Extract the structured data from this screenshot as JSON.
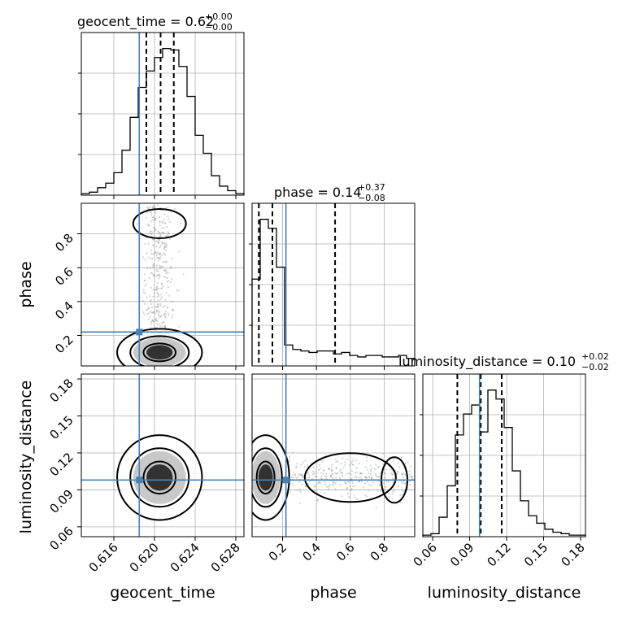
{
  "chart_data": {
    "type": "corner",
    "params": [
      {
        "name": "geocent_time",
        "axis_label": "geocent_time",
        "title": "geocent_time = 0.62",
        "title_sup": "+0.00",
        "title_sub": "−0.00",
        "range": [
          0.6128,
          0.6288
        ],
        "ticks": [
          0.616,
          0.62,
          0.624,
          0.628
        ],
        "tick_labels": [
          "0.616",
          "0.620",
          "0.624",
          "0.628"
        ],
        "truth": 0.6185,
        "quantiles": [
          0.6192,
          0.6206,
          0.6219
        ],
        "hist_counts": [
          0.01,
          0.02,
          0.05,
          0.08,
          0.15,
          0.3,
          0.52,
          0.72,
          0.83,
          0.92,
          0.98,
          0.97,
          0.86,
          0.66,
          0.4,
          0.28,
          0.13,
          0.06,
          0.03,
          0.01
        ]
      },
      {
        "name": "phase",
        "axis_label": "phase",
        "title": "phase = 0.14",
        "title_sup": "+0.37",
        "title_sub": "−0.08",
        "range": [
          0.02,
          0.98
        ],
        "ticks": [
          0.2,
          0.4,
          0.6,
          0.8
        ],
        "tick_labels": [
          "0.2",
          "0.4",
          "0.6",
          "0.8"
        ],
        "truth": 0.22,
        "quantiles": [
          0.06,
          0.14,
          0.51
        ],
        "hist_counts": [
          0.58,
          0.98,
          0.92,
          0.66,
          0.14,
          0.11,
          0.1,
          0.09,
          0.1,
          0.1,
          0.08,
          0.09,
          0.07,
          0.06,
          0.07,
          0.07,
          0.06,
          0.06,
          0.07,
          0.05
        ]
      },
      {
        "name": "luminosity_distance",
        "axis_label": "luminosity_distance",
        "title": "luminosity_distance = 0.10",
        "title_sup": "+0.02",
        "title_sub": "−0.02",
        "range": [
          0.052,
          0.184
        ],
        "ticks": [
          0.06,
          0.09,
          0.12,
          0.15,
          0.18
        ],
        "tick_labels": [
          "0.06",
          "0.09",
          "0.12",
          "0.15",
          "0.18"
        ],
        "truth": 0.098,
        "quantiles": [
          0.08,
          0.099,
          0.116
        ],
        "hist_counts": [
          0.01,
          0.02,
          0.13,
          0.34,
          0.68,
          0.82,
          0.88,
          0.7,
          0.98,
          0.92,
          0.73,
          0.44,
          0.24,
          0.14,
          0.09,
          0.05,
          0.03,
          0.02,
          0.01,
          0.01
        ]
      }
    ],
    "colors": {
      "truth": "#4682b4",
      "hist": "#000000",
      "scatter": "#888888"
    },
    "grid": true
  }
}
